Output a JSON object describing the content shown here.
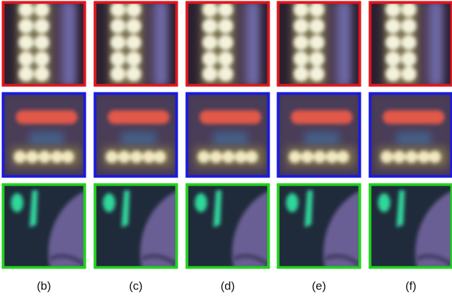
{
  "labels": [
    "(b)",
    "(c)",
    "(d)",
    "(e)",
    "(f)"
  ]
}
